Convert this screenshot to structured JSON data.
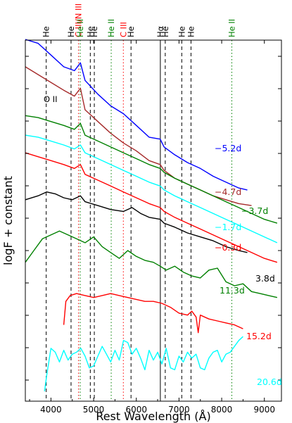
{
  "chart_data": {
    "type": "line",
    "title": "",
    "xlabel": "Rest Wavelength (Å)",
    "ylabel": "logF + constant",
    "xlim": [
      3400,
      9400
    ],
    "xticks": [
      4000,
      5000,
      6000,
      7000,
      8000,
      9000
    ],
    "grid": false,
    "legend": "none",
    "annotation": "O II",
    "line_ids": [
      {
        "label": "He",
        "x": 3889,
        "color": "#000000",
        "style": "dashed"
      },
      {
        "label": "He",
        "x": 4471,
        "color": "#000000",
        "style": "dashed"
      },
      {
        "label": "C III/N III",
        "x": 4647,
        "color": "#ff0000",
        "style": "dotted"
      },
      {
        "label": "He II",
        "x": 4686,
        "color": "#008000",
        "style": "dotted"
      },
      {
        "label": "He",
        "x": 4922,
        "color": "#000000",
        "style": "dashed"
      },
      {
        "label": "He",
        "x": 5016,
        "color": "#000000",
        "style": "dashed"
      },
      {
        "label": "He II",
        "x": 5412,
        "color": "#008000",
        "style": "dotted"
      },
      {
        "label": "C III",
        "x": 5696,
        "color": "#ff0000",
        "style": "dotted"
      },
      {
        "label": "He",
        "x": 5876,
        "color": "#000000",
        "style": "dashed"
      },
      {
        "label": "Hα",
        "x": 6563,
        "color": "#000000",
        "style": "solid"
      },
      {
        "label": "He",
        "x": 6678,
        "color": "#000000",
        "style": "dashed"
      },
      {
        "label": "He",
        "x": 7065,
        "color": "#000000",
        "style": "dashed"
      },
      {
        "label": "He",
        "x": 7281,
        "color": "#000000",
        "style": "dashed"
      },
      {
        "label": "He II",
        "x": 8237,
        "color": "#008000",
        "style": "dotted"
      }
    ],
    "series": [
      {
        "name": "−5.2d",
        "color": "#0000ff",
        "x": [
          3400,
          3700,
          4000,
          4300,
          4550,
          4690,
          4800,
          5100,
          5400,
          5700,
          6000,
          6300,
          6560,
          6650,
          6900,
          7200,
          7500,
          7800,
          8100,
          8400,
          8600
        ],
        "y": [
          10.0,
          9.9,
          9.6,
          9.3,
          9.2,
          9.4,
          8.95,
          8.6,
          8.3,
          8.1,
          7.8,
          7.5,
          7.45,
          7.25,
          7.05,
          6.85,
          6.7,
          6.5,
          6.35,
          6.2,
          6.15
        ]
      },
      {
        "name": "−4.7d",
        "color": "#a52a2a",
        "x": [
          3400,
          3700,
          4000,
          4300,
          4550,
          4690,
          4800,
          5100,
          5400,
          5700,
          6000,
          6300,
          6560,
          6650,
          6900,
          7200,
          7500,
          7800,
          8100,
          8400,
          8700
        ],
        "y": [
          9.3,
          9.1,
          8.9,
          8.7,
          8.55,
          8.75,
          8.2,
          7.9,
          7.6,
          7.35,
          7.15,
          6.9,
          6.8,
          6.65,
          6.45,
          6.3,
          6.15,
          6.0,
          5.9,
          5.8,
          5.75
        ]
      },
      {
        "name": "−3.7d",
        "color": "#008000",
        "x": [
          3400,
          3700,
          4000,
          4300,
          4550,
          4690,
          4800,
          5100,
          5400,
          5700,
          6000,
          6300,
          6560,
          6650,
          6900,
          7200,
          7500,
          7800,
          8100,
          8400,
          8700,
          9000,
          9300
        ],
        "y": [
          8.05,
          8.0,
          7.9,
          7.8,
          7.7,
          7.85,
          7.55,
          7.4,
          7.25,
          7.1,
          6.95,
          6.8,
          6.7,
          6.6,
          6.45,
          6.3,
          6.15,
          6.0,
          5.85,
          5.7,
          5.55,
          5.4,
          5.3
        ]
      },
      {
        "name": "−1.7d",
        "color": "#00ffff",
        "x": [
          3400,
          3700,
          4000,
          4300,
          4550,
          4690,
          4800,
          5100,
          5400,
          5700,
          6000,
          6300,
          6560,
          6650,
          6900,
          7200,
          7500,
          7800,
          8100,
          8400,
          8700,
          9000,
          9300
        ],
        "y": [
          7.55,
          7.5,
          7.4,
          7.3,
          7.2,
          7.3,
          7.1,
          6.95,
          6.8,
          6.65,
          6.5,
          6.35,
          6.25,
          6.15,
          6.0,
          5.85,
          5.7,
          5.55,
          5.4,
          5.25,
          5.1,
          4.95,
          4.8
        ]
      },
      {
        "name": "−0.3d",
        "color": "#ff0000",
        "x": [
          3400,
          3700,
          4000,
          4300,
          4550,
          4690,
          4800,
          5100,
          5400,
          5700,
          6000,
          6300,
          6560,
          6650,
          6900,
          7200,
          7500,
          7800,
          8100,
          8400,
          8700,
          9000,
          9300
        ],
        "y": [
          7.1,
          7.0,
          6.9,
          6.8,
          6.7,
          6.8,
          6.55,
          6.4,
          6.25,
          6.1,
          5.95,
          5.8,
          5.7,
          5.6,
          5.45,
          5.3,
          5.15,
          5.0,
          4.85,
          4.7,
          4.55,
          4.4,
          4.3
        ]
      },
      {
        "name": "3.8d",
        "color": "#000000",
        "x": [
          3400,
          3700,
          3900,
          4100,
          4300,
          4500,
          4690,
          4800,
          5100,
          5400,
          5700,
          5900,
          6100,
          6300,
          6560,
          6650,
          6900,
          7200,
          7500,
          7800,
          8100,
          8400,
          8600
        ],
        "y": [
          5.9,
          6.0,
          6.1,
          6.05,
          5.95,
          5.9,
          6.0,
          5.85,
          5.75,
          5.65,
          5.6,
          5.7,
          5.55,
          5.45,
          5.4,
          5.3,
          5.2,
          5.05,
          4.95,
          4.85,
          4.7,
          4.6,
          4.55
        ]
      },
      {
        "name": "11.3d",
        "color": "#008000",
        "x": [
          3400,
          3600,
          3800,
          4000,
          4200,
          4400,
          4600,
          4800,
          5000,
          5200,
          5400,
          5600,
          5800,
          6000,
          6200,
          6400,
          6560,
          6700,
          6900,
          7100,
          7300,
          7500,
          7700,
          7900,
          8100,
          8300,
          8500,
          8700,
          8900,
          9100,
          9300
        ],
        "y": [
          4.3,
          4.6,
          4.9,
          5.0,
          5.1,
          5.0,
          4.9,
          4.8,
          4.95,
          4.7,
          4.55,
          4.4,
          4.6,
          4.45,
          4.35,
          4.3,
          4.2,
          4.1,
          4.2,
          4.05,
          3.95,
          3.9,
          4.1,
          4.15,
          3.8,
          3.7,
          3.75,
          3.55,
          3.5,
          3.45,
          3.4
        ]
      },
      {
        "name": "15.2d",
        "color": "#ff0000",
        "x": [
          4300,
          4350,
          4450,
          4600,
          4800,
          5000,
          5200,
          5400,
          5600,
          5800,
          6000,
          6200,
          6400,
          6600,
          6800,
          7000,
          7200,
          7300,
          7400,
          7450,
          7500,
          7700,
          7900,
          8100,
          8300,
          8500
        ],
        "y": [
          2.7,
          3.3,
          3.45,
          3.5,
          3.45,
          3.4,
          3.45,
          3.5,
          3.45,
          3.4,
          3.35,
          3.3,
          3.3,
          3.25,
          3.15,
          3.0,
          2.95,
          3.05,
          2.9,
          2.5,
          2.95,
          2.85,
          2.8,
          2.75,
          2.7,
          2.6
        ]
      },
      {
        "name": "20.6d",
        "color": "#00ffff",
        "x": [
          3850,
          3900,
          4000,
          4100,
          4200,
          4300,
          4400,
          4500,
          4600,
          4700,
          4800,
          4900,
          5000,
          5100,
          5200,
          5300,
          5400,
          5500,
          5600,
          5700,
          5800,
          5900,
          6000,
          6100,
          6200,
          6300,
          6400,
          6500,
          6600,
          6700,
          6800,
          6900,
          7000,
          7100,
          7200,
          7300,
          7400,
          7500,
          7600,
          7700,
          7800,
          7900,
          8000,
          8100,
          8200,
          8300,
          8400,
          8500
        ],
        "y": [
          1.0,
          1.4,
          2.1,
          2.0,
          1.75,
          2.05,
          1.8,
          1.95,
          2.0,
          2.1,
          1.9,
          1.6,
          1.65,
          1.9,
          2.15,
          1.95,
          1.75,
          2.05,
          1.8,
          2.3,
          2.25,
          1.95,
          2.1,
          1.85,
          1.55,
          2.05,
          1.8,
          2.0,
          1.7,
          2.1,
          1.6,
          1.55,
          1.9,
          1.75,
          2.0,
          1.85,
          1.95,
          1.6,
          1.55,
          1.85,
          2.0,
          2.05,
          1.75,
          1.95,
          2.0,
          2.15,
          2.3,
          2.4
        ]
      }
    ]
  }
}
